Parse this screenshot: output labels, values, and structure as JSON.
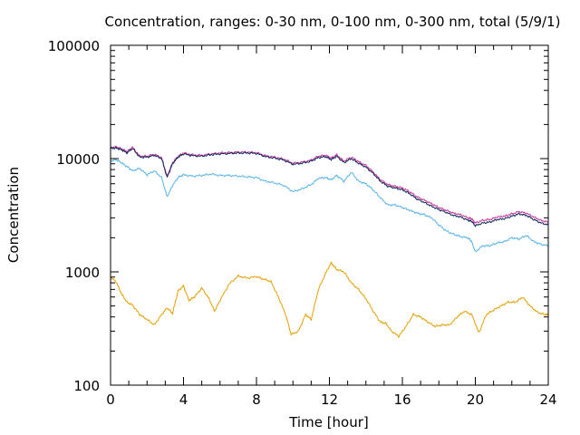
{
  "chart_data": {
    "type": "line",
    "title": "Concentration, ranges: 0-30 nm, 0-100 nm, 0-300 nm, total (5/9/1)",
    "xlabel": "Time [hour]",
    "ylabel": "Concentration",
    "xlim": [
      0,
      24
    ],
    "ylim": [
      100,
      100000
    ],
    "yscale": "log",
    "xticks": [
      "0",
      "4",
      "8",
      "12",
      "16",
      "20",
      "24"
    ],
    "yticks": [
      "100",
      "1000",
      "10000",
      "100000"
    ],
    "grid": false,
    "legend": "none",
    "series": [
      {
        "color": "#e69f00",
        "x": [
          0,
          0.3,
          0.6,
          0.9,
          1.2,
          1.6,
          2.0,
          2.4,
          2.8,
          3.1,
          3.4,
          3.7,
          4.0,
          4.3,
          4.6,
          5.0,
          5.4,
          5.7,
          6.0,
          6.5,
          7.0,
          7.5,
          8.0,
          8.4,
          8.8,
          9.2,
          9.6,
          9.9,
          10.3,
          10.7,
          11.0,
          11.4,
          11.8,
          12.1,
          12.4,
          12.8,
          13.2,
          13.6,
          14.0,
          14.4,
          14.8,
          15.1,
          15.4,
          15.8,
          16.2,
          16.6,
          17.0,
          17.4,
          17.8,
          18.2,
          18.6,
          19.0,
          19.4,
          19.8,
          20.2,
          20.6,
          21.0,
          21.4,
          21.8,
          22.2,
          22.6,
          23.0,
          23.4,
          23.8,
          24.0
        ],
        "y": [
          900,
          820,
          640,
          540,
          510,
          420,
          380,
          340,
          420,
          480,
          430,
          680,
          750,
          560,
          600,
          720,
          580,
          450,
          560,
          780,
          920,
          880,
          910,
          860,
          820,
          600,
          420,
          280,
          300,
          420,
          380,
          700,
          980,
          1200,
          1050,
          1000,
          800,
          700,
          580,
          450,
          360,
          350,
          300,
          270,
          330,
          420,
          400,
          360,
          330,
          340,
          340,
          400,
          450,
          420,
          290,
          420,
          460,
          500,
          540,
          540,
          600,
          500,
          440,
          420,
          420
        ]
      },
      {
        "color": "#56b4e9",
        "x": [
          0,
          0.3,
          0.6,
          0.9,
          1.2,
          1.6,
          2.0,
          2.4,
          2.8,
          3.1,
          3.4,
          3.7,
          4.0,
          4.5,
          5.0,
          5.5,
          6.0,
          6.5,
          7.0,
          7.5,
          8.0,
          8.5,
          9.0,
          9.5,
          10.0,
          10.5,
          11.0,
          11.4,
          11.8,
          12.1,
          12.4,
          12.8,
          13.2,
          13.6,
          14.0,
          14.4,
          14.8,
          15.2,
          15.6,
          16.0,
          16.4,
          16.8,
          17.2,
          17.6,
          18.0,
          18.4,
          18.8,
          19.2,
          19.6,
          19.8,
          20.0,
          20.4,
          20.8,
          21.2,
          21.6,
          22.0,
          22.4,
          22.8,
          23.2,
          23.6,
          24.0
        ],
        "y": [
          9500,
          9800,
          9200,
          8500,
          7800,
          8200,
          7200,
          7800,
          6800,
          4600,
          5800,
          6800,
          7200,
          7000,
          7100,
          7300,
          7100,
          7100,
          7000,
          6900,
          6800,
          6300,
          6100,
          5800,
          5100,
          5400,
          5900,
          6700,
          6800,
          6500,
          7100,
          6300,
          7600,
          6300,
          6000,
          5300,
          4500,
          3900,
          3900,
          3700,
          3500,
          3300,
          3200,
          3000,
          2600,
          2300,
          2150,
          2050,
          2000,
          1850,
          1500,
          1700,
          1700,
          1800,
          1850,
          2000,
          1950,
          2100,
          1850,
          1750,
          1700
        ]
      },
      {
        "color": "#cc3399",
        "x": [
          0,
          0.3,
          0.6,
          0.9,
          1.2,
          1.6,
          2.0,
          2.4,
          2.8,
          3.1,
          3.4,
          3.7,
          4.0,
          4.5,
          5.0,
          5.5,
          6.0,
          6.5,
          7.0,
          7.5,
          8.0,
          8.5,
          9.0,
          9.5,
          10.0,
          10.5,
          11.0,
          11.4,
          11.8,
          12.1,
          12.4,
          12.8,
          13.2,
          13.6,
          14.0,
          14.4,
          14.8,
          15.2,
          15.6,
          16.0,
          16.4,
          16.8,
          17.2,
          17.6,
          18.0,
          18.4,
          18.8,
          19.2,
          19.6,
          19.8,
          20.0,
          20.4,
          20.8,
          21.2,
          21.6,
          22.0,
          22.4,
          22.8,
          23.2,
          23.6,
          24.0
        ],
        "y": [
          12500,
          12700,
          12200,
          11500,
          12600,
          10500,
          10500,
          10900,
          10200,
          7000,
          9200,
          10500,
          11200,
          10800,
          10700,
          11000,
          11200,
          11300,
          11400,
          11400,
          11300,
          10600,
          10300,
          9900,
          9100,
          9300,
          9700,
          10500,
          10700,
          10100,
          10800,
          9500,
          10300,
          9400,
          8700,
          7600,
          6500,
          5900,
          5700,
          5500,
          5100,
          4600,
          4300,
          4000,
          3700,
          3500,
          3300,
          3200,
          3000,
          2950,
          2700,
          2850,
          2900,
          3050,
          3100,
          3250,
          3400,
          3300,
          3050,
          2850,
          2750
        ]
      },
      {
        "color": "#0d2a5c",
        "x": [
          0,
          0.3,
          0.6,
          0.9,
          1.2,
          1.6,
          2.0,
          2.4,
          2.8,
          3.1,
          3.4,
          3.7,
          4.0,
          4.5,
          5.0,
          5.5,
          6.0,
          6.5,
          7.0,
          7.5,
          8.0,
          8.5,
          9.0,
          9.5,
          10.0,
          10.5,
          11.0,
          11.4,
          11.8,
          12.1,
          12.4,
          12.8,
          13.2,
          13.6,
          14.0,
          14.4,
          14.8,
          15.2,
          15.6,
          16.0,
          16.4,
          16.8,
          17.2,
          17.6,
          18.0,
          18.4,
          18.8,
          19.2,
          19.6,
          19.8,
          20.0,
          20.4,
          20.8,
          21.2,
          21.6,
          22.0,
          22.4,
          22.8,
          23.2,
          23.6,
          24.0
        ],
        "y": [
          12300,
          12400,
          12000,
          11200,
          12300,
          10300,
          10300,
          10700,
          10000,
          6800,
          9000,
          10300,
          11000,
          10600,
          10500,
          10800,
          11000,
          11100,
          11200,
          11200,
          11100,
          10400,
          10100,
          9700,
          8900,
          9100,
          9500,
          10200,
          10400,
          9800,
          10500,
          9200,
          10000,
          9100,
          8400,
          7400,
          6300,
          5700,
          5500,
          5300,
          4900,
          4400,
          4100,
          3800,
          3550,
          3350,
          3150,
          3050,
          2850,
          2800,
          2550,
          2700,
          2750,
          2900,
          2950,
          3100,
          3250,
          3150,
          2900,
          2700,
          2600
        ]
      }
    ]
  }
}
